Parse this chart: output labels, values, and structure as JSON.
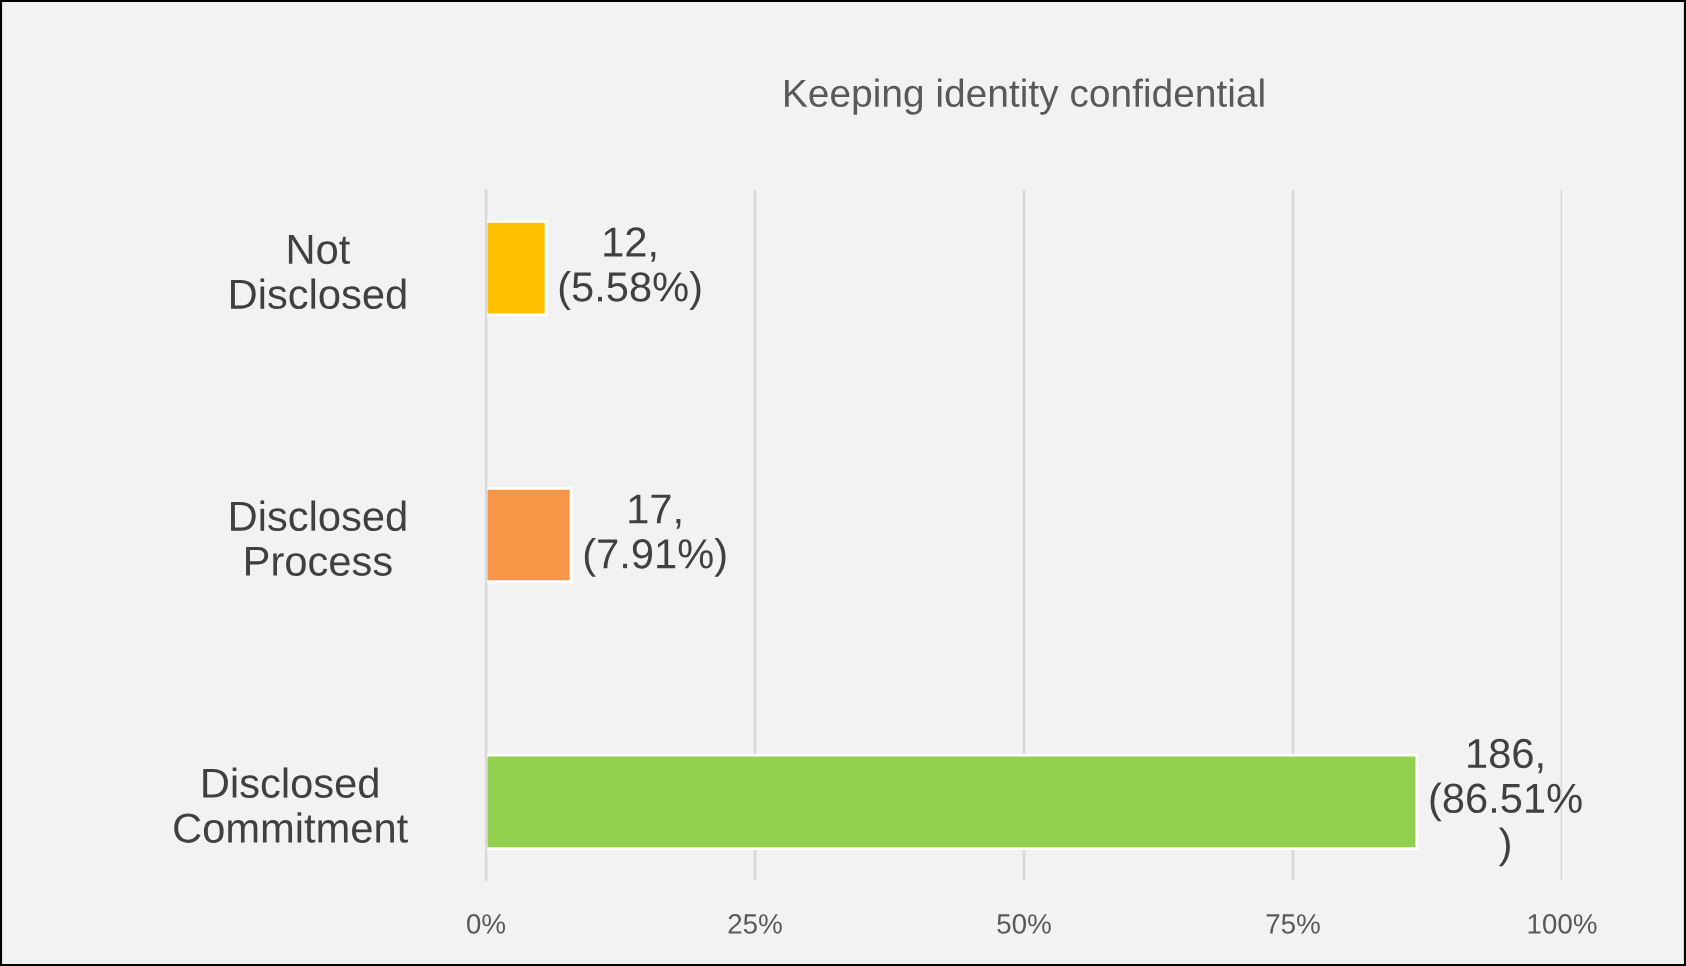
{
  "chart_data": {
    "type": "bar",
    "orientation": "horizontal",
    "title": "Keeping identity confidential",
    "categories": [
      "Not\nDisclosed",
      "Disclosed\nProcess",
      "Disclosed\nCommitment"
    ],
    "values": [
      5.58,
      7.91,
      86.51
    ],
    "colors": [
      "#ffc000",
      "#f79646",
      "#92d050"
    ],
    "value_labels": [
      "12,\n(5.58%)",
      "17,\n(7.91%)",
      "186,\n(86.51%\n)"
    ],
    "xlim": [
      0,
      100
    ],
    "xticks": [
      {
        "value": 0,
        "label": "0%"
      },
      {
        "value": 25,
        "label": "25%"
      },
      {
        "value": 50,
        "label": "50%"
      },
      {
        "value": 75,
        "label": "75%"
      },
      {
        "value": 100,
        "label": "100%"
      }
    ],
    "grid": "x",
    "legend": false
  }
}
